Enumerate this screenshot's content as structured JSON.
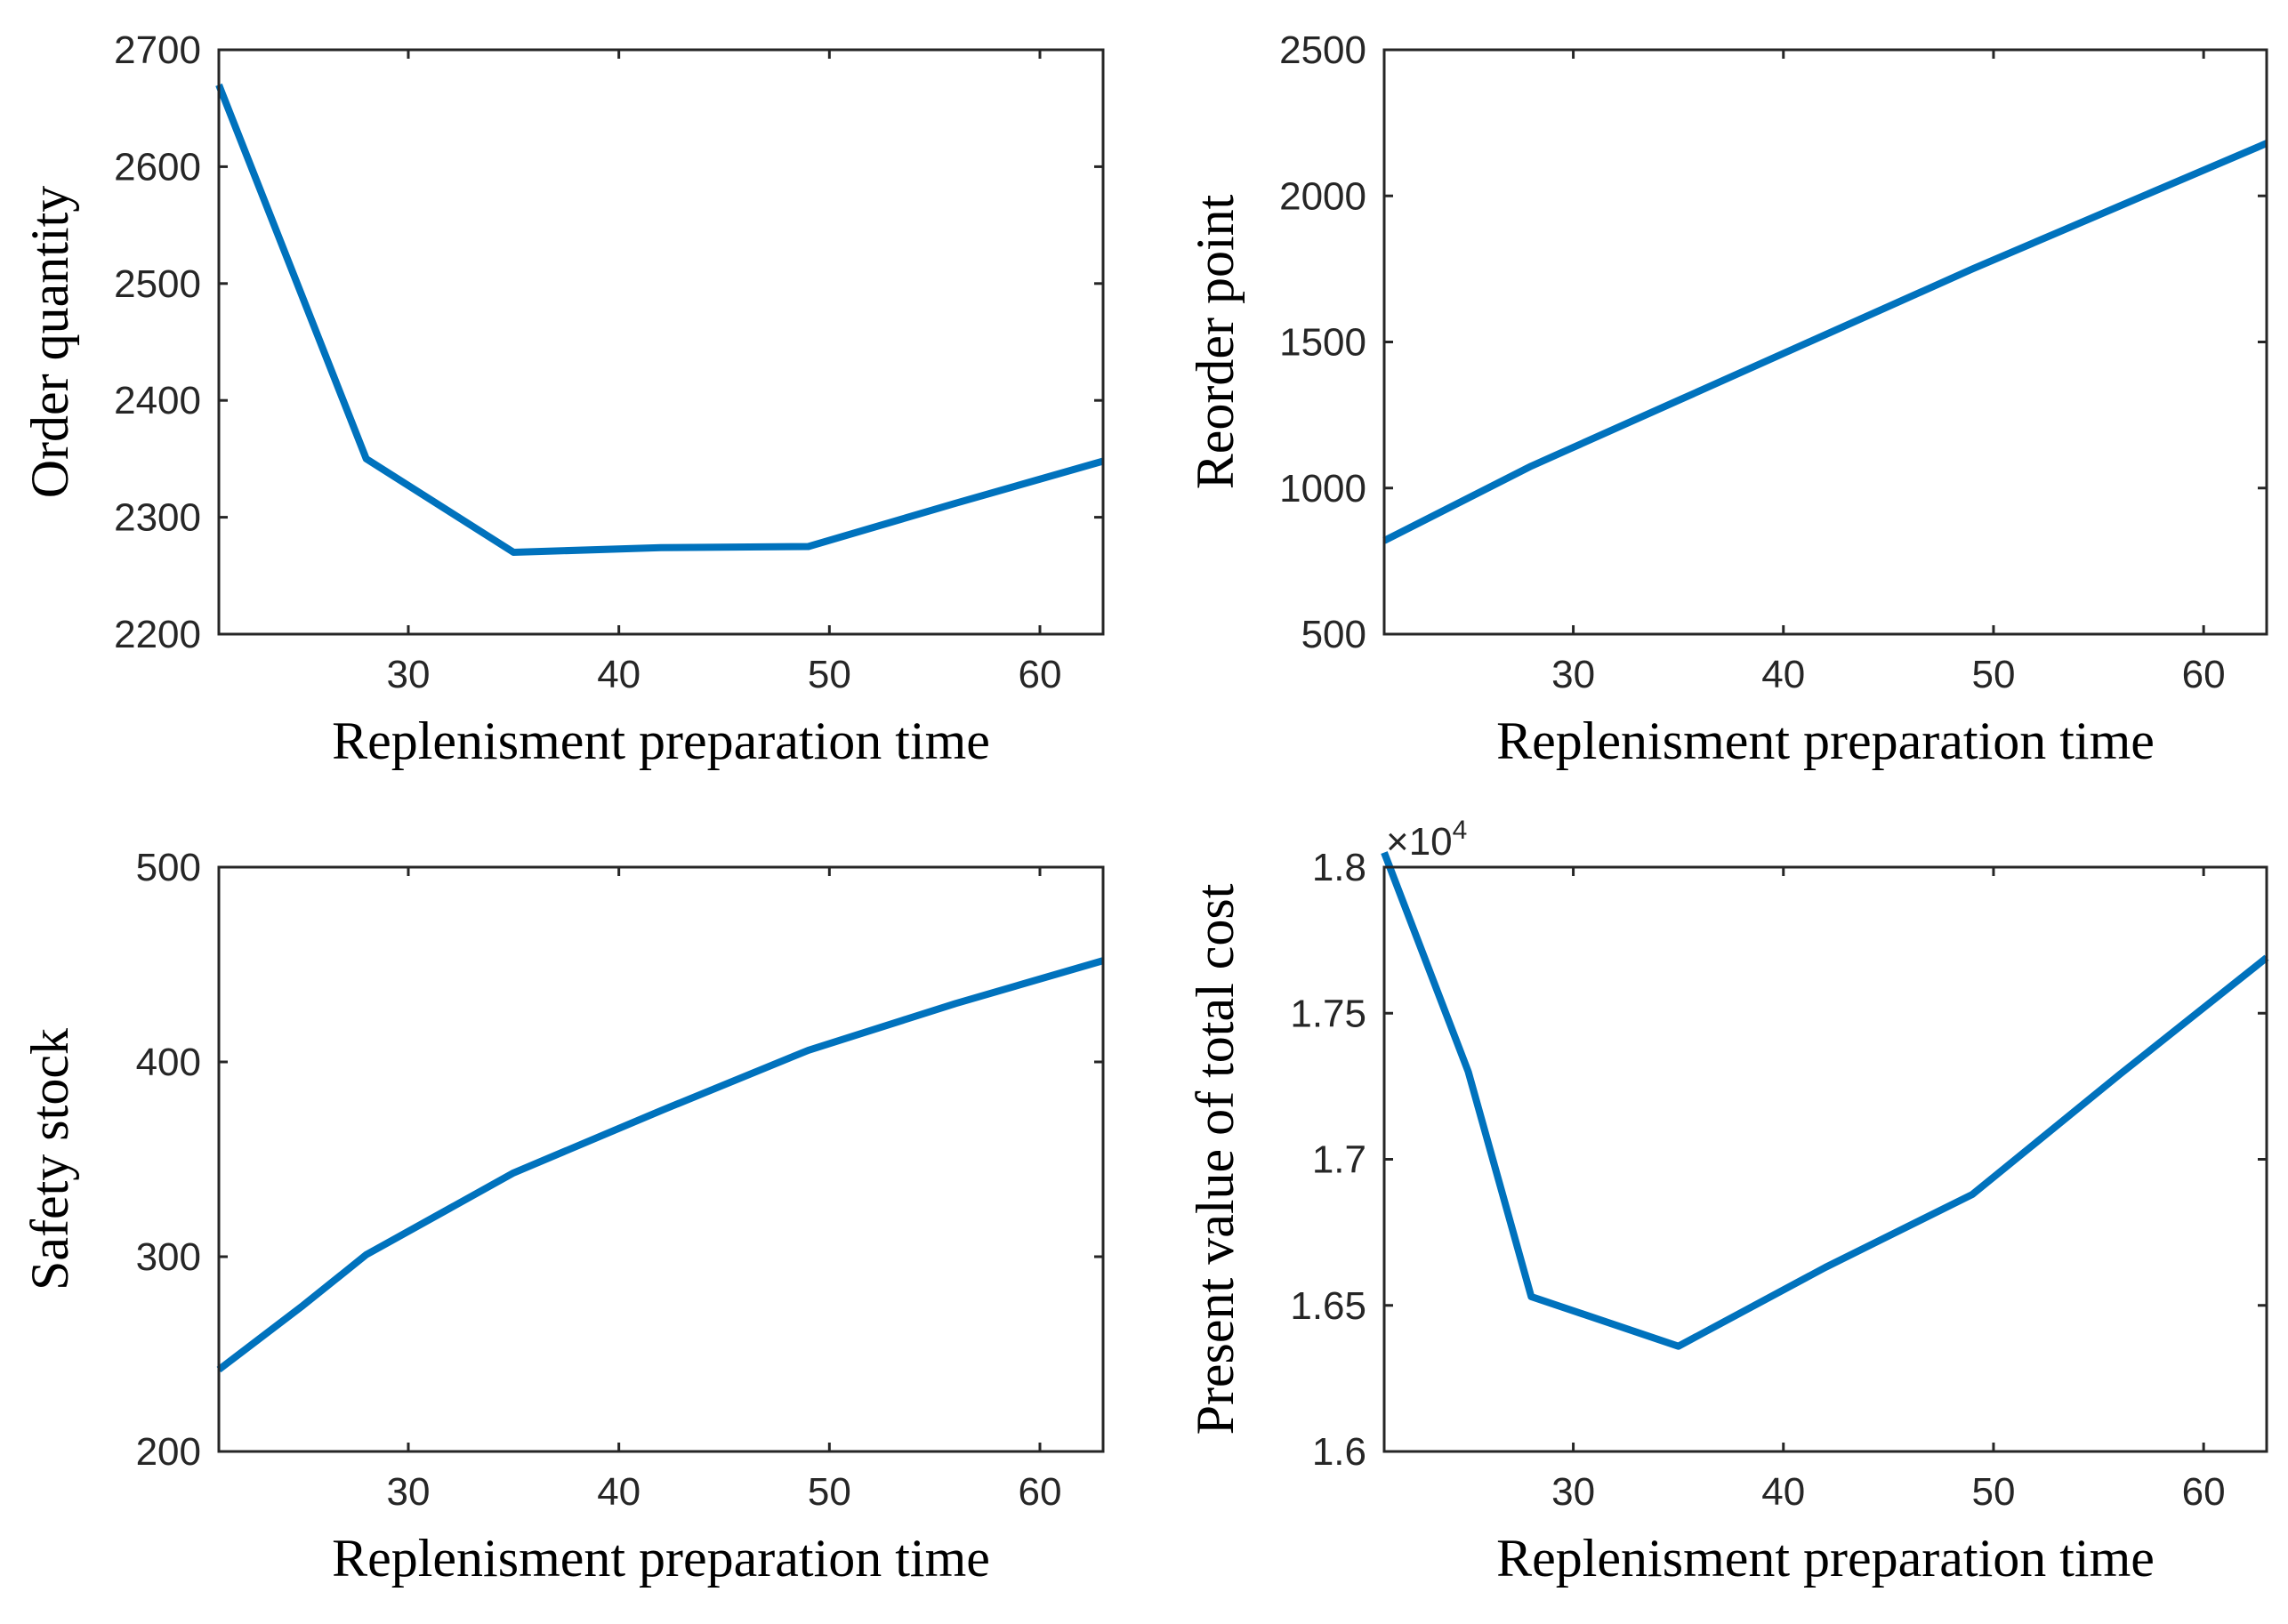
{
  "figure": {
    "title": ""
  },
  "colors": {
    "line": "#0072BD",
    "axis": "#262626",
    "background": "#ffffff"
  },
  "chart_data": [
    {
      "type": "line",
      "name": "order-quantity",
      "title": "",
      "xlabel": "Replenisment preparation time",
      "ylabel": "Order quantity",
      "xlim": [
        21,
        63
      ],
      "ylim": [
        2200,
        2700
      ],
      "xticks": [
        30,
        40,
        50,
        60
      ],
      "xtick_labels": [
        "30",
        "40",
        "50",
        "60"
      ],
      "yticks": [
        2200,
        2300,
        2400,
        2500,
        2600,
        2700
      ],
      "ytick_labels": [
        "2200",
        "2300",
        "2400",
        "2500",
        "2600",
        "2700"
      ],
      "exponent_label": null,
      "series": [
        {
          "name": "Order quantity",
          "x": [
            21,
            28,
            35,
            42,
            49,
            56,
            63
          ],
          "values": [
            2670,
            2350,
            2270,
            2274,
            2275,
            2312,
            2348
          ]
        }
      ]
    },
    {
      "type": "line",
      "name": "reorder-point",
      "title": "",
      "xlabel": "Replenisment preparation time",
      "ylabel": "Reorder point",
      "xlim": [
        21,
        63
      ],
      "ylim": [
        500,
        2500
      ],
      "xticks": [
        30,
        40,
        50,
        60
      ],
      "xtick_labels": [
        "30",
        "40",
        "50",
        "60"
      ],
      "yticks": [
        500,
        1000,
        1500,
        2000,
        2500
      ],
      "ytick_labels": [
        "500",
        "1000",
        "1500",
        "2000",
        "2500"
      ],
      "exponent_label": null,
      "series": [
        {
          "name": "Reorder point",
          "x": [
            21,
            28,
            35,
            42,
            49,
            56,
            63
          ],
          "values": [
            820,
            1075,
            1300,
            1525,
            1750,
            1965,
            2180
          ]
        }
      ]
    },
    {
      "type": "line",
      "name": "safety-stock",
      "title": "",
      "xlabel": "Replenisment preparation time",
      "ylabel": "Safety stock",
      "xlim": [
        21,
        63
      ],
      "ylim": [
        200,
        500
      ],
      "xticks": [
        30,
        40,
        50,
        60
      ],
      "xtick_labels": [
        "30",
        "40",
        "50",
        "60"
      ],
      "yticks": [
        200,
        300,
        400,
        500
      ],
      "ytick_labels": [
        "200",
        "300",
        "400",
        "500"
      ],
      "exponent_label": null,
      "series": [
        {
          "name": "Safety stock",
          "x": [
            21,
            25,
            28,
            35,
            42,
            49,
            56,
            63
          ],
          "values": [
            242,
            275,
            301,
            343,
            375,
            406,
            430,
            452
          ]
        }
      ]
    },
    {
      "type": "line",
      "name": "present-value-total-cost",
      "title": "",
      "xlabel": "Replenisment preparation time",
      "ylabel": "Present value of total cost",
      "xlim": [
        21,
        63
      ],
      "ylim": [
        1.6,
        1.8
      ],
      "xticks": [
        30,
        40,
        50,
        60
      ],
      "xtick_labels": [
        "30",
        "40",
        "50",
        "60"
      ],
      "yticks": [
        1.6,
        1.65,
        1.7,
        1.75,
        1.8
      ],
      "ytick_labels": [
        "1.6",
        "1.65",
        "1.7",
        "1.75",
        "1.8"
      ],
      "exponent_label": {
        "base": "×10",
        "power": "4"
      },
      "series": [
        {
          "name": "Present value of total cost",
          "x": [
            21,
            25,
            28,
            35,
            42,
            49,
            56,
            63
          ],
          "values": [
            1.805,
            1.73,
            1.653,
            1.636,
            1.663,
            1.688,
            1.729,
            1.769
          ]
        }
      ]
    }
  ]
}
